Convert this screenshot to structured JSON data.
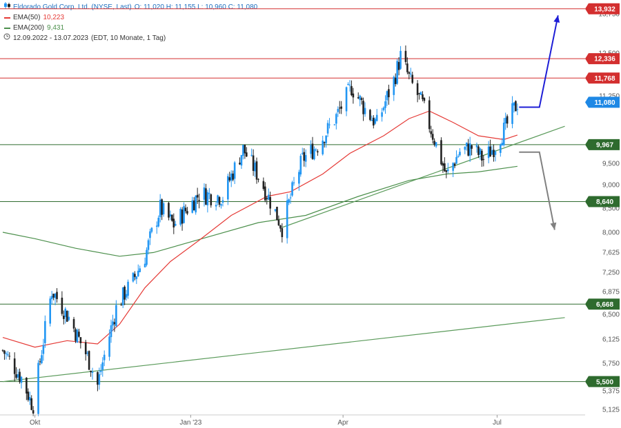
{
  "legend": {
    "title": "Eldorado Gold Corp. Ltd. (NYSE, Last)",
    "ohlc": "O: 11,020  H: 11,155  L: 10,960  C: 11,080",
    "ema50_label": "EMA(50)",
    "ema50_value": "10,223",
    "ema200_label": "EMA(200)",
    "ema200_value": "9,431",
    "range": "12.09.2022 - 13.07.2023",
    "range_note": "(EDT, 10 Monate, 1 Tag)",
    "chart_icon": "candlestick-icon",
    "clock_icon": "clock-icon"
  },
  "colors": {
    "up": "#2196f3",
    "down": "#222222",
    "ema50": "#e53935",
    "ema200": "#4b8f4b",
    "resistance": "#d32f2f",
    "support": "#2e6b2e",
    "price_tag": "#1e88e5",
    "arrow_up": "#1d1dd6",
    "arrow_down": "#808080"
  },
  "chart_data": {
    "type": "candlestick",
    "symbol": "Eldorado Gold Corp. Ltd. (NYSE, Last)",
    "x_range": [
      "2022-09-12",
      "2023-07-13"
    ],
    "x_ticks": [
      {
        "label": "Okt",
        "date": "2022-10-01"
      },
      {
        "label": "Jan '23",
        "date": "2023-01-01"
      },
      {
        "label": "Apr",
        "date": "2023-04-01"
      },
      {
        "label": "Jul",
        "date": "2023-07-01"
      }
    ],
    "y_ticks": [
      "5,125",
      "5,375",
      "5,750",
      "6,125",
      "6,500",
      "6,875",
      "7,250",
      "7,625",
      "8,000",
      "8,500",
      "9,000",
      "9,500",
      "10,000",
      "11,250",
      "12,500",
      "13,750"
    ],
    "ylim": [
      5.0,
      14.2
    ],
    "price_path": [
      [
        "2022-09-12",
        5.95
      ],
      [
        "2022-09-23",
        5.55
      ],
      [
        "2022-09-30",
        5.15
      ],
      [
        "2022-10-11",
        6.9
      ],
      [
        "2022-10-21",
        6.45
      ],
      [
        "2022-11-01",
        5.85
      ],
      [
        "2022-11-07",
        5.45
      ],
      [
        "2022-11-18",
        6.6
      ],
      [
        "2022-11-28",
        7.1
      ],
      [
        "2022-12-05",
        7.55
      ],
      [
        "2022-12-14",
        8.5
      ],
      [
        "2022-12-22",
        8.15
      ],
      [
        "2023-01-06",
        8.8
      ],
      [
        "2023-01-20",
        8.75
      ],
      [
        "2023-02-01",
        9.85
      ],
      [
        "2023-02-10",
        9.2
      ],
      [
        "2023-02-24",
        8.1
      ],
      [
        "2023-03-08",
        9.6
      ],
      [
        "2023-03-17",
        9.95
      ],
      [
        "2023-03-28",
        10.7
      ],
      [
        "2023-04-06",
        11.5
      ],
      [
        "2023-04-14",
        10.9
      ],
      [
        "2023-04-21",
        10.5
      ],
      [
        "2023-05-01",
        11.7
      ],
      [
        "2023-05-05",
        12.4
      ],
      [
        "2023-05-11",
        11.65
      ],
      [
        "2023-05-18",
        11.0
      ],
      [
        "2023-05-25",
        10.1
      ],
      [
        "2023-06-01",
        9.2
      ],
      [
        "2023-06-09",
        9.8
      ],
      [
        "2023-06-16",
        9.9
      ],
      [
        "2023-06-23",
        9.6
      ],
      [
        "2023-06-30",
        9.95
      ],
      [
        "2023-07-07",
        10.5
      ],
      [
        "2023-07-13",
        11.08
      ]
    ],
    "ema50": [
      [
        "2022-09-12",
        6.15
      ],
      [
        "2022-10-01",
        6.0
      ],
      [
        "2022-10-20",
        6.1
      ],
      [
        "2022-11-07",
        6.05
      ],
      [
        "2022-11-20",
        6.35
      ],
      [
        "2022-12-05",
        6.95
      ],
      [
        "2022-12-20",
        7.45
      ],
      [
        "2023-01-06",
        7.85
      ],
      [
        "2023-01-25",
        8.35
      ],
      [
        "2023-02-15",
        8.75
      ],
      [
        "2023-03-01",
        8.85
      ],
      [
        "2023-03-20",
        9.25
      ],
      [
        "2023-04-05",
        9.75
      ],
      [
        "2023-04-25",
        10.2
      ],
      [
        "2023-05-10",
        10.65
      ],
      [
        "2023-05-22",
        10.85
      ],
      [
        "2023-06-05",
        10.55
      ],
      [
        "2023-06-20",
        10.2
      ],
      [
        "2023-07-05",
        10.1
      ],
      [
        "2023-07-13",
        10.22
      ]
    ],
    "ema200": [
      [
        "2022-09-12",
        8.0
      ],
      [
        "2022-10-01",
        7.88
      ],
      [
        "2022-10-25",
        7.7
      ],
      [
        "2022-11-20",
        7.55
      ],
      [
        "2022-12-10",
        7.62
      ],
      [
        "2023-01-10",
        7.9
      ],
      [
        "2023-02-10",
        8.2
      ],
      [
        "2023-03-10",
        8.35
      ],
      [
        "2023-04-10",
        8.75
      ],
      [
        "2023-05-10",
        9.1
      ],
      [
        "2023-06-01",
        9.25
      ],
      [
        "2023-06-20",
        9.3
      ],
      [
        "2023-07-13",
        9.43
      ]
    ],
    "levels": [
      {
        "value": 13.932,
        "label": "13,932",
        "kind": "resistance"
      },
      {
        "value": 12.336,
        "label": "12,336",
        "kind": "resistance"
      },
      {
        "value": 11.768,
        "label": "11,768",
        "kind": "resistance"
      },
      {
        "value": 9.967,
        "label": "9,967",
        "kind": "support"
      },
      {
        "value": 8.64,
        "label": "8,640",
        "kind": "support"
      },
      {
        "value": 6.668,
        "label": "6,668",
        "kind": "support"
      },
      {
        "value": 5.5,
        "label": "5,500",
        "kind": "support"
      }
    ],
    "price_tag": {
      "value": 11.08,
      "label": "11,080"
    },
    "trendlines": [
      {
        "from": [
          "2023-02-24",
          8.1
        ],
        "to": [
          "2023-08-10",
          10.45
        ]
      },
      {
        "from": [
          "2022-09-12",
          5.5
        ],
        "to": [
          "2023-08-10",
          6.45
        ]
      }
    ],
    "scenario_up": {
      "from": [
        "2023-07-14",
        10.95
      ],
      "corner": [
        "2023-07-26",
        10.95
      ],
      "to": [
        "2023-08-06",
        13.7
      ]
    },
    "scenario_down": {
      "from": [
        "2023-07-14",
        9.78
      ],
      "corner": [
        "2023-07-26",
        9.78
      ],
      "to": [
        "2023-08-04",
        8.05
      ]
    }
  }
}
